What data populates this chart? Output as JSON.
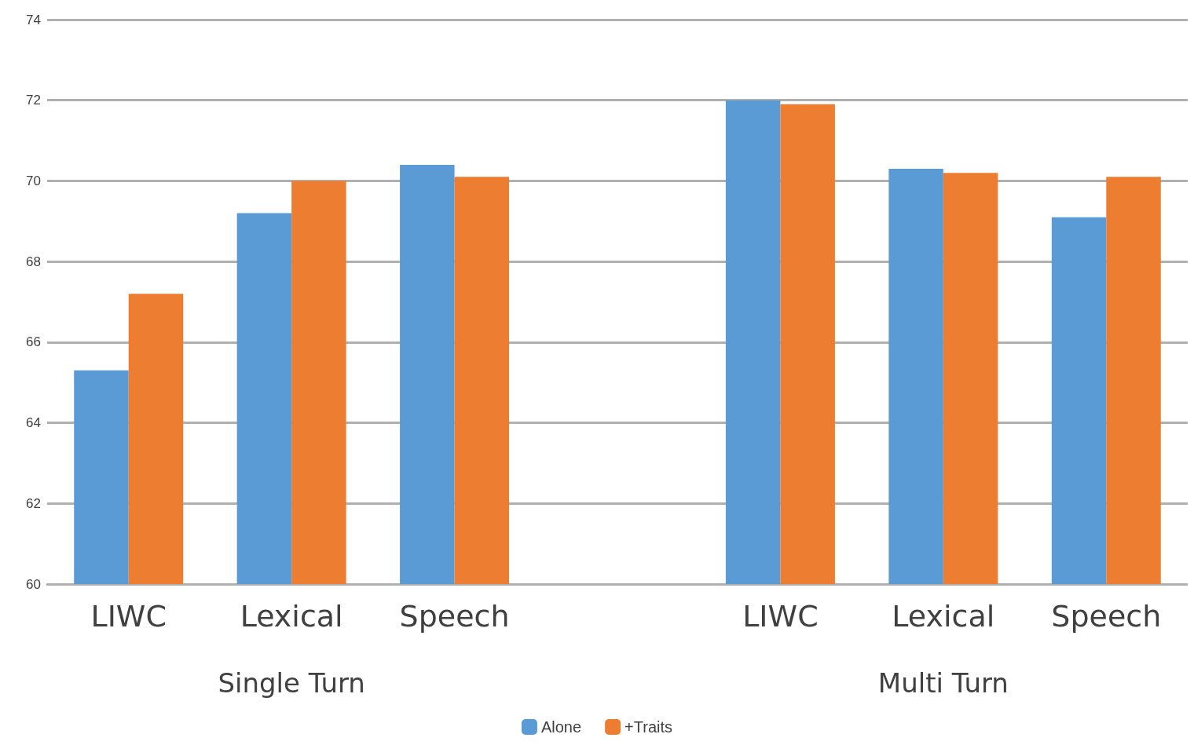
{
  "chart_data": {
    "type": "bar",
    "categories": [
      "LIWC",
      "Lexical",
      "Speech",
      null,
      "LIWC",
      "Lexical",
      "Speech"
    ],
    "series": [
      {
        "name": "Alone",
        "color": "#5b9bd5",
        "values": [
          65.3,
          69.2,
          70.4,
          null,
          72.0,
          70.3,
          69.1
        ]
      },
      {
        "name": "+Traits",
        "color": "#ed7d31",
        "values": [
          67.2,
          70.0,
          70.1,
          null,
          71.9,
          70.2,
          70.1
        ]
      }
    ],
    "ylim": [
      60,
      74
    ],
    "yticks": [
      60,
      62,
      64,
      66,
      68,
      70,
      72,
      74
    ],
    "grid": "y",
    "legend": "bottom",
    "annotations": [
      "Single Turn",
      "Multi Turn"
    ]
  }
}
